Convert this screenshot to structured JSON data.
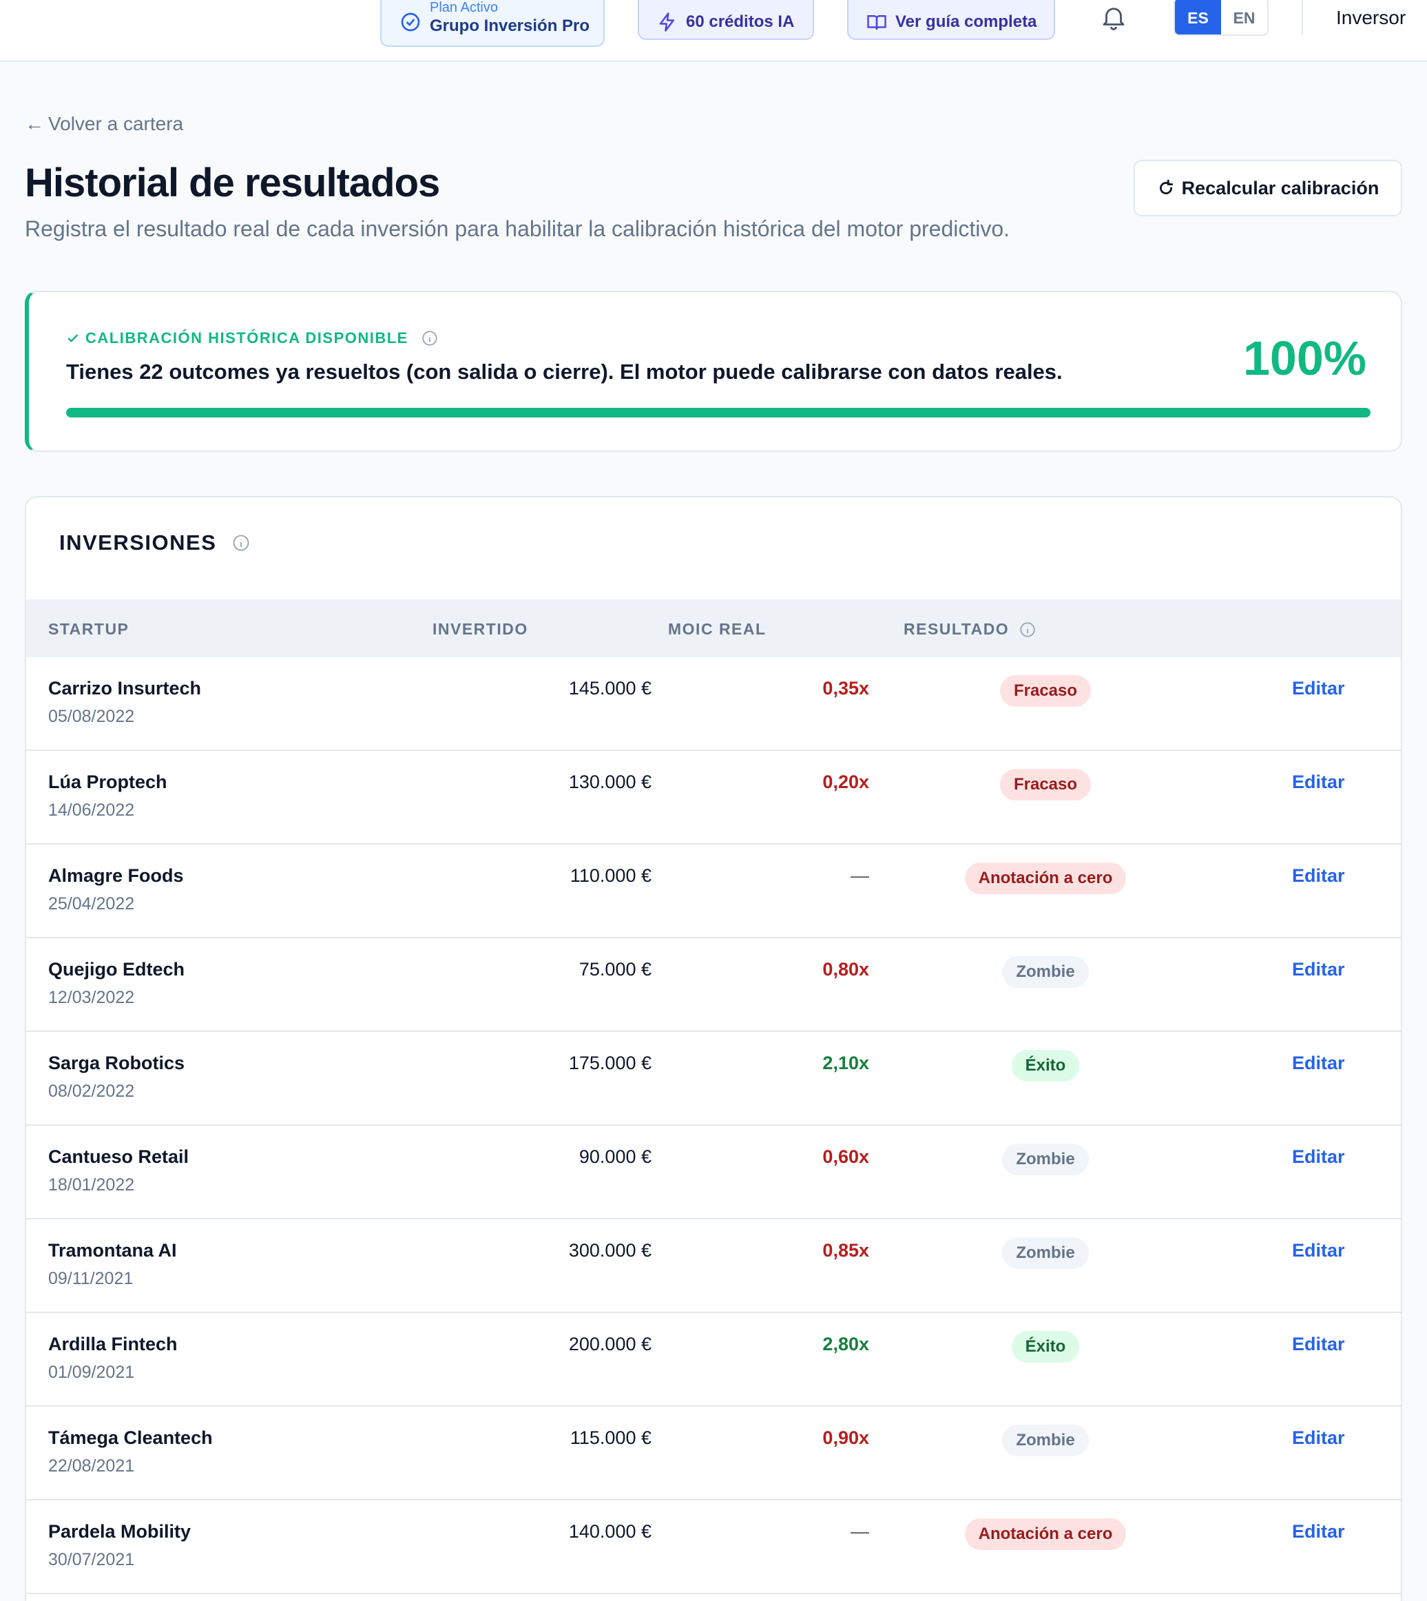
{
  "topbar": {
    "plan_label": "Plan Activo",
    "plan_name": "Grupo Inversión Pro",
    "credits": "60 créditos IA",
    "guide": "Ver guía completa",
    "lang_es": "ES",
    "lang_en": "EN",
    "user": "Inversor"
  },
  "header": {
    "back": "Volver a cartera",
    "title": "Historial de resultados",
    "subtitle": "Registra el resultado real de cada inversión para habilitar la calibración histórica del motor predictivo.",
    "recalc_button": "Recalcular calibración"
  },
  "calibration": {
    "kicker": "CALIBRACIÓN HISTÓRICA DISPONIBLE",
    "message": "Tienes 22 outcomes ya resueltos (con salida o cierre). El motor puede calibrarse con datos reales.",
    "percent_label": "100%",
    "progress": 1.0,
    "accent_color": "#10b981"
  },
  "investments": {
    "title": "INVERSIONES",
    "columns": {
      "startup": "STARTUP",
      "invested": "INVERTIDO",
      "moic": "MOIC REAL",
      "result": "RESULTADO"
    },
    "edit_label": "Editar",
    "rows": [
      {
        "name": "Carrizo Insurtech",
        "date": "05/08/2022",
        "invested": "145.000 €",
        "moic": "0,35x",
        "moic_kind": "neg",
        "result": "Fracaso",
        "result_kind": "fail"
      },
      {
        "name": "Lúa Proptech",
        "date": "14/06/2022",
        "invested": "130.000 €",
        "moic": "0,20x",
        "moic_kind": "neg",
        "result": "Fracaso",
        "result_kind": "fail"
      },
      {
        "name": "Almagre Foods",
        "date": "25/04/2022",
        "invested": "110.000 €",
        "moic": "—",
        "moic_kind": "none",
        "result": "Anotación a cero",
        "result_kind": "zero"
      },
      {
        "name": "Quejigo Edtech",
        "date": "12/03/2022",
        "invested": "75.000 €",
        "moic": "0,80x",
        "moic_kind": "neg",
        "result": "Zombie",
        "result_kind": "zombie"
      },
      {
        "name": "Sarga Robotics",
        "date": "08/02/2022",
        "invested": "175.000 €",
        "moic": "2,10x",
        "moic_kind": "pos",
        "result": "Éxito",
        "result_kind": "ok"
      },
      {
        "name": "Cantueso Retail",
        "date": "18/01/2022",
        "invested": "90.000 €",
        "moic": "0,60x",
        "moic_kind": "neg",
        "result": "Zombie",
        "result_kind": "zombie"
      },
      {
        "name": "Tramontana AI",
        "date": "09/11/2021",
        "invested": "300.000 €",
        "moic": "0,85x",
        "moic_kind": "neg",
        "result": "Zombie",
        "result_kind": "zombie"
      },
      {
        "name": "Ardilla Fintech",
        "date": "01/09/2021",
        "invested": "200.000 €",
        "moic": "2,80x",
        "moic_kind": "pos",
        "result": "Éxito",
        "result_kind": "ok"
      },
      {
        "name": "Támega Cleantech",
        "date": "22/08/2021",
        "invested": "115.000 €",
        "moic": "0,90x",
        "moic_kind": "neg",
        "result": "Zombie",
        "result_kind": "zombie"
      },
      {
        "name": "Pardela Mobility",
        "date": "30/07/2021",
        "invested": "140.000 €",
        "moic": "—",
        "moic_kind": "none",
        "result": "Anotación a cero",
        "result_kind": "zero"
      }
    ]
  }
}
